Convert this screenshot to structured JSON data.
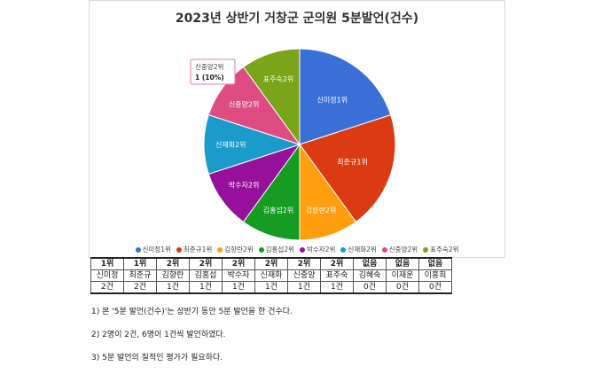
{
  "chart_data": {
    "type": "pie",
    "title": "2023년 상반기 거창군 군의원 5분발언(건수)",
    "categories": [
      "신미정1위",
      "최준규1위",
      "김향란2위",
      "김홍섭2위",
      "박수자2위",
      "신재화2위",
      "신중양2위",
      "표주숙2위"
    ],
    "values": [
      2,
      2,
      1,
      1,
      1,
      1,
      1,
      1
    ],
    "colors": [
      "#3b6fd8",
      "#dc3a12",
      "#ff9e0f",
      "#169b23",
      "#97109c",
      "#1b9bcb",
      "#de4c82",
      "#7aa41a"
    ],
    "tooltip": {
      "title": "신중양2위",
      "value": "1 (10%)"
    },
    "legend_position": "bottom"
  },
  "table": {
    "ranks": [
      "1위",
      "1위",
      "2위",
      "2위",
      "2위",
      "2위",
      "2위",
      "2위",
      "없음",
      "없음",
      "없음"
    ],
    "names": [
      "신미정",
      "최준규",
      "김향란",
      "김홍섭",
      "박수자",
      "신재화",
      "신중양",
      "표주숙",
      "김혜숙",
      "이재운",
      "이홍희"
    ],
    "counts": [
      "2건",
      "2건",
      "1건",
      "1건",
      "1건",
      "1건",
      "1건",
      "1건",
      "0건",
      "0건",
      "0건"
    ]
  },
  "notes": [
    "1) 본 '5분 발언(건수)'는 상반기 동안 5분 발언을 한 건수다.",
    "2) 2명이 2건, 6명이 1건씩 발언하였다.",
    "3) 5분 발언의 질적인 평가가 필요하다."
  ]
}
